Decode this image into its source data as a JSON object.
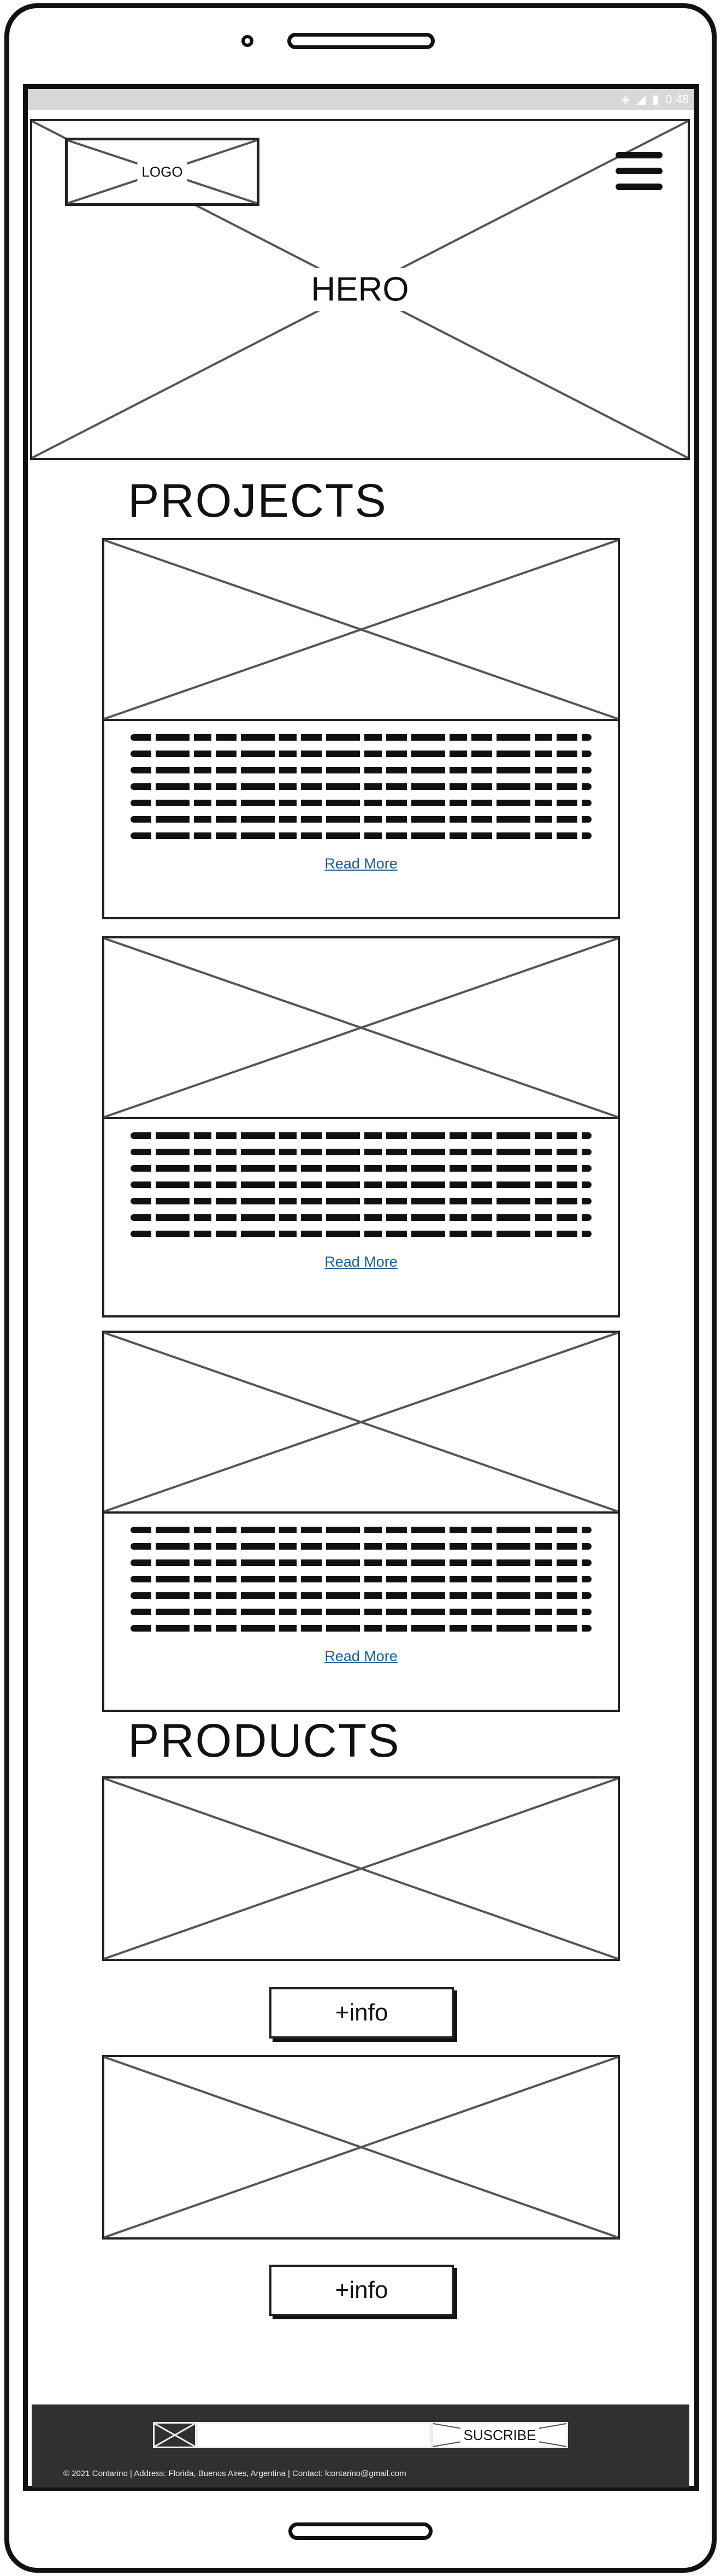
{
  "status_bar": {
    "time": "0:48",
    "icons": [
      "wifi-icon",
      "signal-icon",
      "battery-icon"
    ]
  },
  "hero": {
    "logo": "LOGO",
    "title": "HERO"
  },
  "projects": {
    "heading": "PROJECTS",
    "cards": [
      {
        "link": "Read More"
      },
      {
        "link": "Read More"
      },
      {
        "link": "Read More"
      }
    ]
  },
  "products": {
    "heading": "PRODUCTS",
    "items": [
      {
        "button": "+info"
      },
      {
        "button": "+info"
      }
    ]
  },
  "footer": {
    "subscribe_label": "SUSCRIBE",
    "email_value": "",
    "copyright": "© 2021 Contarino | Address: Florida, Buenos Aires, Argentina | Contact: lcontarino@gmail.com"
  },
  "colors": {
    "link": "#1a5f9e",
    "footer_bg": "#303030",
    "status_bar": "#d8d8d8"
  }
}
